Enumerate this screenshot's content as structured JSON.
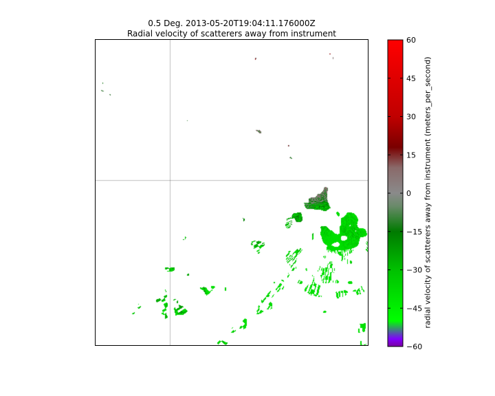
{
  "chart_data": {
    "type": "heatmap",
    "title_lines": [
      "0.5 Deg. 2013-05-20T19:04:11.176000Z",
      "Radial velocity of scatterers away from instrument"
    ],
    "field": "radial velocity",
    "colorbar": {
      "label": "radial velocity of scatterers away from instrument (meters_per_second)",
      "vmin": -60,
      "vmax": 60,
      "ticks": [
        60,
        45,
        30,
        15,
        0,
        -15,
        -30,
        -45,
        -60
      ],
      "tick_labels": [
        "60",
        "45",
        "30",
        "15",
        "0",
        "−15",
        "−30",
        "−45",
        "−60"
      ],
      "colormap_stops": [
        {
          "value": -60,
          "color": "#7a00a0"
        },
        {
          "value": -57,
          "color": "#8000ff"
        },
        {
          "value": -50,
          "color": "#00ff00"
        },
        {
          "value": -30,
          "color": "#00c000"
        },
        {
          "value": -15,
          "color": "#007a00"
        },
        {
          "value": -5,
          "color": "#6a8a6a"
        },
        {
          "value": 0,
          "color": "#8a8a8a"
        },
        {
          "value": 10,
          "color": "#8a6a6a"
        },
        {
          "value": 18,
          "color": "#7a0000"
        },
        {
          "value": 30,
          "color": "#c00000"
        },
        {
          "value": 60,
          "color": "#ff0000"
        }
      ]
    },
    "radar_site_visible": true,
    "data_mask_color": "#ffffff",
    "grid": true
  }
}
